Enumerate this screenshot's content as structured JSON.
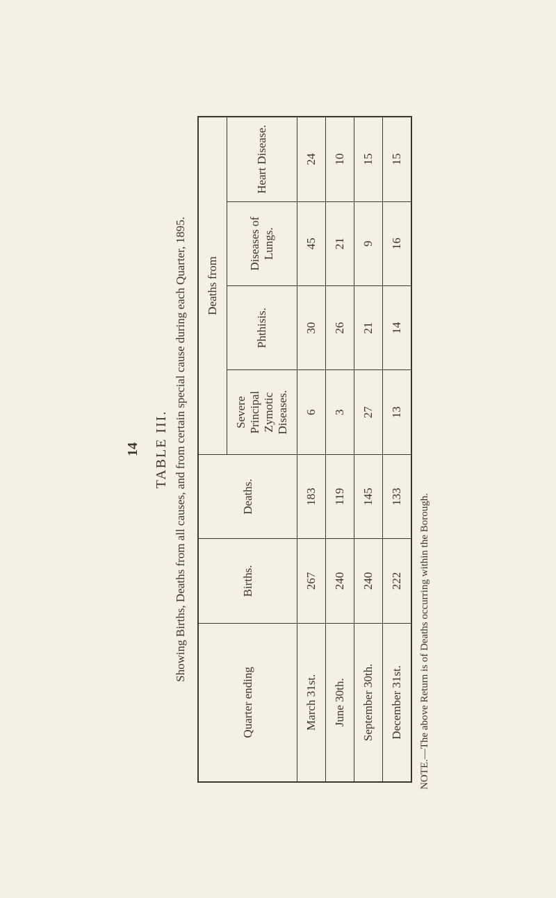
{
  "page_number": "14",
  "table_label": "TABLE III.",
  "subtitle": "Showing Births, Deaths from all causes, and from certain special cause during each Quarter, 1895.",
  "headers": {
    "quarter": "Quarter ending",
    "births": "Births.",
    "deaths": "Deaths.",
    "deaths_from": "Deaths from",
    "severe": "Severe Principal Zymotic Diseases.",
    "phthisis": "Phthisis.",
    "lungs": "Diseases of Lungs.",
    "heart": "Heart Disease."
  },
  "rows": [
    {
      "quarter": "March 31st.",
      "births": "267",
      "deaths": "183",
      "severe": "6",
      "phthisis": "30",
      "lungs": "45",
      "heart": "24"
    },
    {
      "quarter": "June 30th.",
      "births": "240",
      "deaths": "119",
      "severe": "3",
      "phthisis": "26",
      "lungs": "21",
      "heart": "10"
    },
    {
      "quarter": "September 30th.",
      "births": "240",
      "deaths": "145",
      "severe": "27",
      "phthisis": "21",
      "lungs": "9",
      "heart": "15"
    },
    {
      "quarter": "December 31st.",
      "births": "222",
      "deaths": "133",
      "severe": "13",
      "phthisis": "14",
      "lungs": "16",
      "heart": "15"
    }
  ],
  "note": "NOTE.—The above Return is of Deaths occurring within the Borough."
}
